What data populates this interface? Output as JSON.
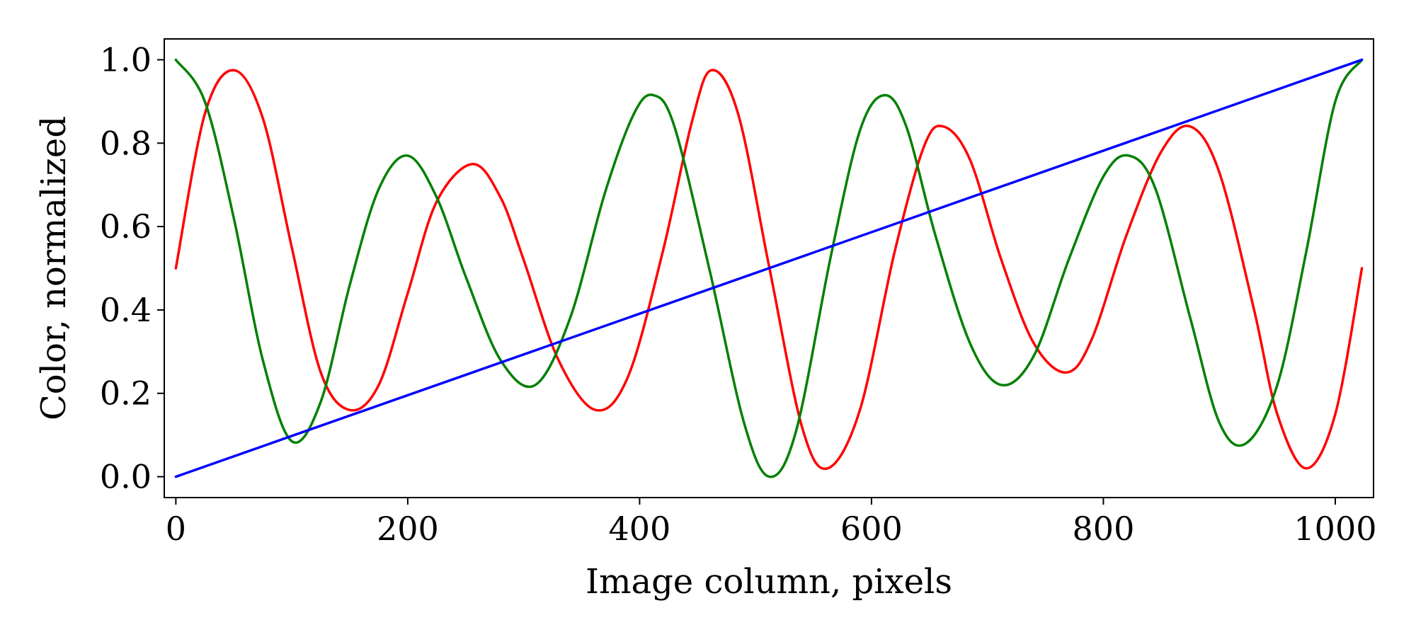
{
  "chart_data": {
    "type": "line",
    "title": "",
    "xlabel": "Image column, pixels",
    "ylabel": "Color, normalized",
    "xlim": [
      -10,
      1033
    ],
    "ylim": [
      -0.05,
      1.05
    ],
    "x_ticks": [
      0,
      200,
      400,
      600,
      800,
      1000
    ],
    "x_tick_labels": [
      "0",
      "200",
      "400",
      "600",
      "800",
      "1000"
    ],
    "y_ticks": [
      0.0,
      0.2,
      0.4,
      0.6,
      0.8,
      1.0
    ],
    "y_tick_labels": [
      "0.0",
      "0.2",
      "0.4",
      "0.6",
      "0.8",
      "1.0"
    ],
    "grid": false,
    "legend": "none",
    "series": [
      {
        "color": "#ff0000",
        "x": [
          0,
          25,
          50,
          75,
          100,
          125,
          150,
          175,
          200,
          225,
          256,
          280,
          300,
          330,
          362,
          390,
          420,
          445,
          462,
          485,
          512,
          540,
          562,
          590,
          620,
          645,
          662,
          685,
          712,
          740,
          768,
          790,
          820,
          850,
          875,
          900,
          930,
          950,
          975,
          1000,
          1023
        ],
        "values": [
          0.5,
          0.87,
          0.975,
          0.86,
          0.55,
          0.25,
          0.16,
          0.22,
          0.44,
          0.66,
          0.75,
          0.67,
          0.52,
          0.28,
          0.16,
          0.24,
          0.54,
          0.85,
          0.975,
          0.87,
          0.5,
          0.12,
          0.02,
          0.16,
          0.54,
          0.79,
          0.84,
          0.76,
          0.52,
          0.32,
          0.25,
          0.33,
          0.58,
          0.78,
          0.84,
          0.73,
          0.4,
          0.15,
          0.02,
          0.15,
          0.5
        ]
      },
      {
        "color": "#008000",
        "x": [
          0,
          25,
          50,
          75,
          100,
          125,
          150,
          175,
          200,
          225,
          250,
          280,
          310,
          340,
          370,
          395,
          412,
          430,
          460,
          490,
          512,
          535,
          565,
          590,
          611,
          630,
          655,
          685,
          712,
          740,
          770,
          800,
          822,
          845,
          875,
          900,
          923,
          950,
          975,
          1000,
          1023
        ],
        "values": [
          1.0,
          0.9,
          0.62,
          0.28,
          0.085,
          0.18,
          0.46,
          0.69,
          0.77,
          0.67,
          0.48,
          0.28,
          0.22,
          0.38,
          0.68,
          0.87,
          0.915,
          0.84,
          0.5,
          0.13,
          0.0,
          0.11,
          0.53,
          0.83,
          0.915,
          0.84,
          0.58,
          0.32,
          0.22,
          0.29,
          0.52,
          0.72,
          0.77,
          0.69,
          0.38,
          0.13,
          0.08,
          0.22,
          0.54,
          0.9,
          1.0
        ]
      },
      {
        "color": "#0000ff",
        "x": [
          0,
          1023
        ],
        "values": [
          0.0,
          1.0
        ]
      }
    ]
  }
}
